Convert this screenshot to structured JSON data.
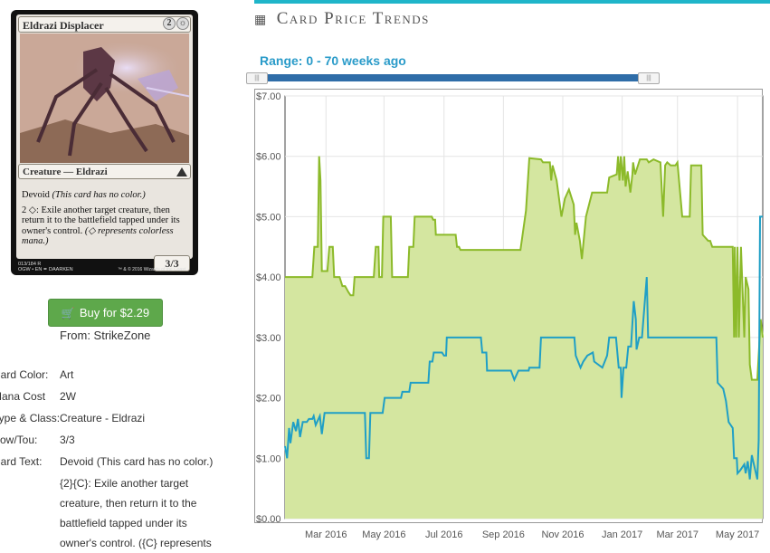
{
  "card": {
    "name": "Eldrazi Displacer",
    "mana_cost": "2",
    "mana_symbol": "☼",
    "type_line": "Creature — Eldrazi",
    "text_main": "Devoid",
    "text_italic": "(This card has no color.)",
    "ability": "2 ◇: Exile another target creature, then return it to the battlefield tapped under its owner's control.",
    "reminder": "(◇ represents colorless mana.)",
    "pt": "3/3",
    "collector": "013/184 R",
    "set_line": "OGW • EN ✒ DAARKEN",
    "copyright": "™ & © 2016 Wizards of the Coast"
  },
  "buy": {
    "label": "Buy for $2.29",
    "from": "From: StrikeZone"
  },
  "details": {
    "rows": [
      {
        "label": "Card Color:",
        "value": "Art"
      },
      {
        "label": "Mana Cost",
        "value": "2W"
      },
      {
        "label": "Type & Class:",
        "value": "Creature - Eldrazi"
      },
      {
        "label": "Pow/Tou:",
        "value": "3/3"
      },
      {
        "label": "Card Text:",
        "value": "Devoid (This card has no color.)"
      }
    ],
    "text_lines": [
      "{2}{C}: Exile another target",
      "creature, then return it to the",
      "battlefield tapped under its",
      "owner's control. ({C} represents"
    ]
  },
  "panel": {
    "title": "Card Price Trends",
    "range": "Range: 0 - 70 weeks ago",
    "handle_glyph": "|||"
  },
  "colors": {
    "accent": "#1fb5c9",
    "paper": "#8cba2a",
    "paper_fill": "#d4e6a0",
    "online": "#1f9fc6",
    "buy": "#5ea84b"
  },
  "chart_data": {
    "type": "line",
    "xlabel": "",
    "ylabel": "",
    "xlim": [
      0,
      70
    ],
    "ylim": [
      0,
      7
    ],
    "y_ticks": [
      "$0.00",
      "$1.00",
      "$2.00",
      "$3.00",
      "$4.00",
      "$5.00",
      "$6.00",
      "$7.00"
    ],
    "x_ticks": [
      {
        "label": "Mar 2016",
        "x": 6
      },
      {
        "label": "May 2016",
        "x": 14.5
      },
      {
        "label": "Jul 2016",
        "x": 23.3
      },
      {
        "label": "Sep 2016",
        "x": 32
      },
      {
        "label": "Nov 2016",
        "x": 40.7
      },
      {
        "label": "Jan 2017",
        "x": 49.4
      },
      {
        "label": "Mar 2017",
        "x": 57.5
      },
      {
        "label": "May 2017",
        "x": 66.3
      }
    ],
    "grid": true,
    "series": [
      {
        "style": "area",
        "points": [
          [
            0,
            4.0
          ],
          [
            4,
            4.0
          ],
          [
            4.3,
            4.5
          ],
          [
            4.8,
            4.5
          ],
          [
            5,
            6.0
          ],
          [
            5.2,
            5.6
          ],
          [
            5.4,
            4.1
          ],
          [
            6.2,
            4.1
          ],
          [
            6.5,
            4.5
          ],
          [
            7,
            4.5
          ],
          [
            7.2,
            4.0
          ],
          [
            8,
            4.0
          ],
          [
            8.4,
            3.85
          ],
          [
            8.8,
            3.85
          ],
          [
            9.3,
            3.75
          ],
          [
            9.6,
            3.7
          ],
          [
            10,
            3.7
          ],
          [
            10.2,
            4.0
          ],
          [
            13,
            4.0
          ],
          [
            13.3,
            4.5
          ],
          [
            13.7,
            4.5
          ],
          [
            13.8,
            4.0
          ],
          [
            14.2,
            4.0
          ],
          [
            14.4,
            5.0
          ],
          [
            15.5,
            5.0
          ],
          [
            15.7,
            4.0
          ],
          [
            18,
            4.0
          ],
          [
            18.2,
            4.5
          ],
          [
            18.8,
            4.5
          ],
          [
            19,
            5.0
          ],
          [
            21.5,
            5.0
          ],
          [
            21.7,
            4.95
          ],
          [
            22,
            4.95
          ],
          [
            22.1,
            4.7
          ],
          [
            25,
            4.7
          ],
          [
            25.2,
            4.5
          ],
          [
            25.5,
            4.5
          ],
          [
            25.7,
            4.45
          ],
          [
            34.5,
            4.45
          ],
          [
            35.3,
            5.1
          ],
          [
            35.8,
            5.97
          ],
          [
            37.5,
            5.95
          ],
          [
            37.8,
            5.9
          ],
          [
            38.8,
            5.9
          ],
          [
            39,
            5.6
          ],
          [
            39.2,
            5.85
          ],
          [
            39.8,
            5.6
          ],
          [
            40.5,
            5.0
          ],
          [
            41,
            5.3
          ],
          [
            41.6,
            5.45
          ],
          [
            42.3,
            5.2
          ],
          [
            42.5,
            4.7
          ],
          [
            42.7,
            4.9
          ],
          [
            43.2,
            4.6
          ],
          [
            43.5,
            4.3
          ],
          [
            44.1,
            5.0
          ],
          [
            45,
            5.4
          ],
          [
            46,
            5.4
          ],
          [
            47.2,
            5.4
          ],
          [
            47.5,
            5.65
          ],
          [
            48.6,
            5.7
          ],
          [
            48.8,
            6.0
          ],
          [
            49,
            5.6
          ],
          [
            49.2,
            6.0
          ],
          [
            49.5,
            5.6
          ],
          [
            49.7,
            6.0
          ],
          [
            49.9,
            5.5
          ],
          [
            50.2,
            5.75
          ],
          [
            50.6,
            5.4
          ],
          [
            50.9,
            5.7
          ],
          [
            51,
            5.9
          ],
          [
            51.3,
            5.7
          ],
          [
            52,
            5.95
          ],
          [
            53,
            5.95
          ],
          [
            53.3,
            5.9
          ],
          [
            54,
            5.95
          ],
          [
            55,
            5.9
          ],
          [
            55.4,
            5.0
          ],
          [
            55.7,
            5.85
          ],
          [
            56,
            5.9
          ],
          [
            56.5,
            5.85
          ],
          [
            57.2,
            5.85
          ],
          [
            57.5,
            5.9
          ],
          [
            58.2,
            5.0
          ],
          [
            59.3,
            5.0
          ],
          [
            59.5,
            5.85
          ],
          [
            61,
            5.85
          ],
          [
            61.2,
            4.7
          ],
          [
            62,
            4.6
          ],
          [
            62.3,
            4.6
          ],
          [
            62.6,
            4.5
          ],
          [
            65.6,
            4.5
          ],
          [
            65.8,
            3.0
          ],
          [
            65.9,
            4.5
          ],
          [
            66.1,
            3.0
          ],
          [
            66.3,
            4.5
          ],
          [
            66.5,
            3.0
          ],
          [
            66.8,
            4.5
          ],
          [
            67.3,
            3.0
          ],
          [
            67.5,
            4.0
          ],
          [
            67.9,
            3.8
          ],
          [
            68.1,
            2.55
          ],
          [
            68.4,
            2.3
          ],
          [
            69.2,
            2.3
          ],
          [
            69.7,
            3.3
          ],
          [
            70,
            3.0
          ]
        ]
      },
      {
        "style": "line",
        "points": [
          [
            0,
            1.2
          ],
          [
            0.3,
            1.0
          ],
          [
            0.6,
            1.5
          ],
          [
            0.8,
            1.25
          ],
          [
            1.2,
            1.6
          ],
          [
            1.6,
            1.45
          ],
          [
            1.9,
            1.65
          ],
          [
            2.2,
            1.35
          ],
          [
            2.6,
            1.6
          ],
          [
            3.2,
            1.6
          ],
          [
            3.5,
            1.65
          ],
          [
            4,
            1.65
          ],
          [
            4.2,
            1.7
          ],
          [
            4.5,
            1.55
          ],
          [
            5.1,
            1.7
          ],
          [
            5.4,
            1.4
          ],
          [
            5.8,
            1.75
          ],
          [
            11.7,
            1.75
          ],
          [
            11.9,
            1.0
          ],
          [
            12.3,
            1.0
          ],
          [
            12.5,
            1.75
          ],
          [
            14.3,
            1.75
          ],
          [
            14.6,
            2.0
          ],
          [
            17,
            2.0
          ],
          [
            17.2,
            2.1
          ],
          [
            18.2,
            2.1
          ],
          [
            18.4,
            2.25
          ],
          [
            21,
            2.25
          ],
          [
            21.2,
            2.6
          ],
          [
            21.6,
            2.6
          ],
          [
            21.8,
            2.75
          ],
          [
            23,
            2.75
          ],
          [
            23.3,
            2.7
          ],
          [
            23.6,
            2.7
          ],
          [
            23.7,
            3.0
          ],
          [
            28.7,
            3.0
          ],
          [
            28.9,
            2.75
          ],
          [
            29.5,
            2.75
          ],
          [
            29.6,
            2.45
          ],
          [
            33.1,
            2.45
          ],
          [
            33.6,
            2.3
          ],
          [
            34.2,
            2.45
          ],
          [
            35.7,
            2.45
          ],
          [
            35.8,
            2.5
          ],
          [
            37.3,
            2.5
          ],
          [
            37.5,
            3.0
          ],
          [
            42.4,
            3.0
          ],
          [
            42.6,
            2.7
          ],
          [
            43.3,
            2.5
          ],
          [
            43.7,
            2.6
          ],
          [
            44.3,
            2.7
          ],
          [
            45.1,
            2.75
          ],
          [
            45.3,
            2.6
          ],
          [
            46.5,
            2.5
          ],
          [
            47.2,
            2.7
          ],
          [
            47.5,
            3.0
          ],
          [
            48.5,
            3.0
          ],
          [
            48.9,
            2.5
          ],
          [
            49.2,
            2.5
          ],
          [
            49.3,
            2.0
          ],
          [
            49.6,
            2.5
          ],
          [
            50,
            2.5
          ],
          [
            50.3,
            2.85
          ],
          [
            50.7,
            2.85
          ],
          [
            51.1,
            3.6
          ],
          [
            51.4,
            3.3
          ],
          [
            51.5,
            2.8
          ],
          [
            51.9,
            3.0
          ],
          [
            52.3,
            3.0
          ],
          [
            53,
            4.0
          ],
          [
            53.2,
            3.0
          ],
          [
            63.2,
            3.0
          ],
          [
            63.4,
            2.25
          ],
          [
            64.2,
            2.15
          ],
          [
            64.6,
            1.95
          ],
          [
            65,
            1.6
          ],
          [
            65.6,
            1.5
          ],
          [
            65.8,
            1.0
          ],
          [
            66.2,
            1.0
          ],
          [
            66.3,
            0.75
          ],
          [
            66.7,
            0.8
          ],
          [
            67.3,
            0.9
          ],
          [
            67.5,
            0.75
          ],
          [
            67.8,
            0.95
          ],
          [
            68.1,
            0.65
          ],
          [
            68.4,
            1.05
          ],
          [
            68.6,
            0.95
          ],
          [
            69.2,
            0.65
          ],
          [
            69.4,
            1.3
          ],
          [
            69.6,
            5.0
          ],
          [
            70,
            5.0
          ]
        ]
      }
    ]
  }
}
